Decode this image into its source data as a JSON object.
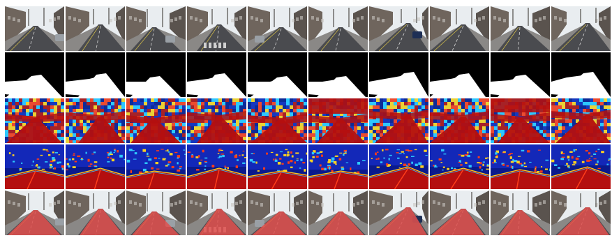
{
  "figure": {
    "columns": 10,
    "rows": [
      {
        "kind": "street-photo"
      },
      {
        "kind": "binary-road-mask"
      },
      {
        "kind": "heatmap-a"
      },
      {
        "kind": "heatmap-b"
      },
      {
        "kind": "road-overlay"
      }
    ],
    "colors": {
      "sky": "#e9edf0",
      "road": "#4a4b4f",
      "building": "#6f655d",
      "mask_road": "#ffffff",
      "mask_bg": "#000000",
      "heat_hot": "#b40f0f",
      "heat_warm": "#ff3d1a",
      "heat_mid": "#ffd21f",
      "heat_cool": "#2dc7ff",
      "heat_cold": "#1328b8",
      "heat_deep": "#0a1a8c",
      "overlay": "#e2504d"
    }
  }
}
